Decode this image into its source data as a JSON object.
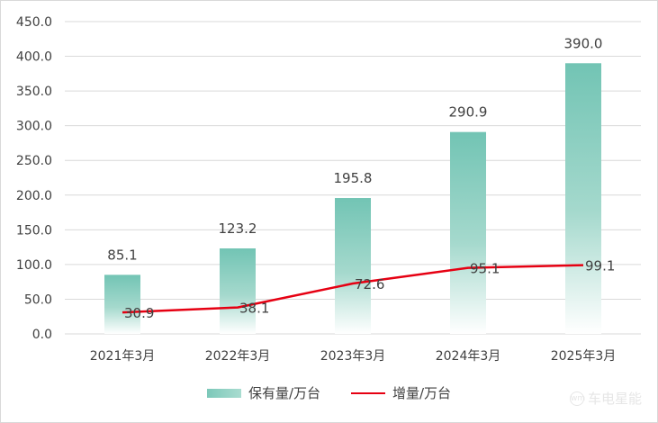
{
  "chart_data": {
    "type": "bar",
    "categories": [
      "2021年3月",
      "2022年3月",
      "2023年3月",
      "2024年3月",
      "2025年3月"
    ],
    "series": [
      {
        "name": "保有量/万台",
        "type": "bar",
        "values": [
          85.1,
          123.2,
          195.8,
          290.9,
          390.0
        ],
        "labels": [
          "85.1",
          "123.2",
          "195.8",
          "290.9",
          "390.0"
        ]
      },
      {
        "name": "增量/万台",
        "type": "line",
        "values": [
          30.9,
          38.1,
          72.6,
          95.1,
          99.1
        ],
        "labels": [
          "30.9",
          "38.1",
          "72.6",
          "95.1",
          "99.1"
        ]
      }
    ],
    "y_ticks": [
      "0.0",
      "50.0",
      "100.0",
      "150.0",
      "200.0",
      "250.0",
      "300.0",
      "350.0",
      "400.0",
      "450.0"
    ],
    "ylim": [
      0,
      450
    ],
    "grid": true,
    "legend_position": "bottom",
    "colors": {
      "bar": "#7cc8b9",
      "line": "#e60012",
      "grid": "#d9d9d9",
      "text": "#404040"
    }
  },
  "watermark": {
    "text": "车电星能",
    "icon": "wm"
  }
}
